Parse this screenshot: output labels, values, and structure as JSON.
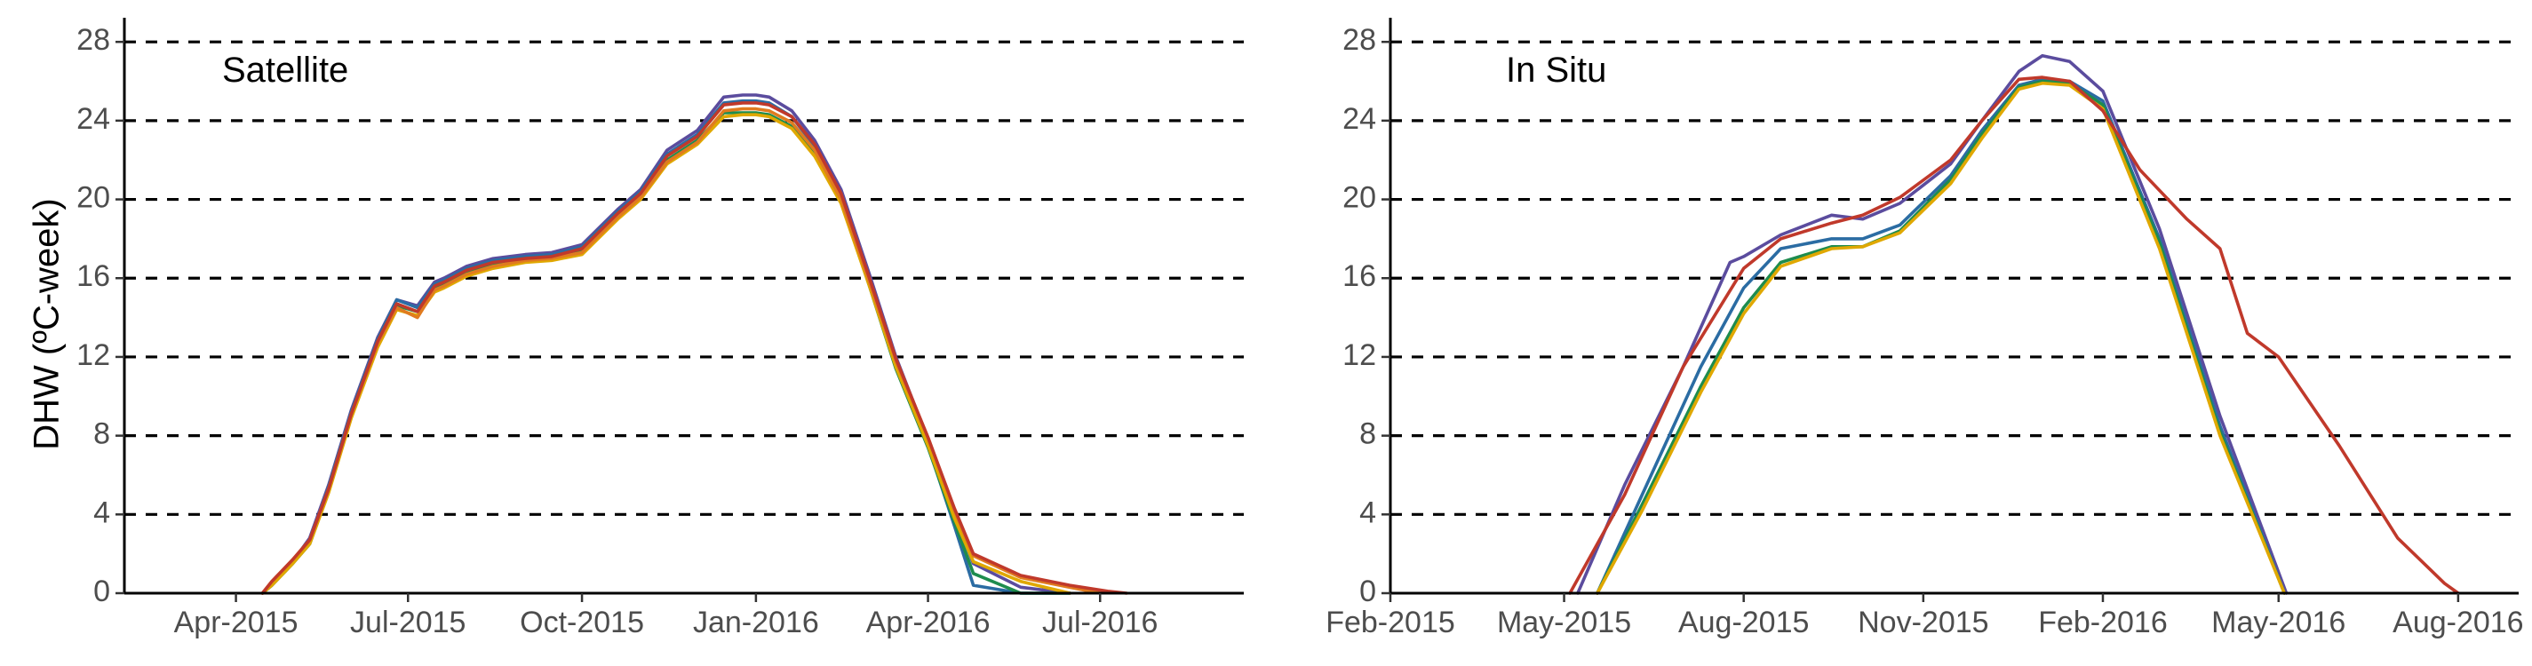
{
  "y_axis_title": "DHW (ºC-week)",
  "chart_data": [
    {
      "type": "line",
      "title": "Satellite",
      "ylabel": "DHW (ºC-week)",
      "xlabel": "",
      "x_type": "date",
      "xlim": [
        "2015-02-01",
        "2016-09-15"
      ],
      "ylim": [
        0,
        29
      ],
      "grid": "dashed horizontal",
      "y_ticks": [
        0,
        4,
        8,
        12,
        16,
        20,
        24,
        28
      ],
      "x_ticks": [
        {
          "date": "2015-04-01",
          "label": "Apr-2015"
        },
        {
          "date": "2015-07-01",
          "label": "Jul-2015"
        },
        {
          "date": "2015-10-01",
          "label": "Oct-2015"
        },
        {
          "date": "2016-01-01",
          "label": "Jan-2016"
        },
        {
          "date": "2016-04-01",
          "label": "Apr-2016"
        },
        {
          "date": "2016-07-01",
          "label": "Jul-2016"
        }
      ],
      "series": [
        {
          "color": "#5B4C9E",
          "x": [
            "2015-04-15",
            "2015-04-20",
            "2015-05-01",
            "2015-05-10",
            "2015-05-20",
            "2015-06-01",
            "2015-06-15",
            "2015-06-25",
            "2015-07-06",
            "2015-07-15",
            "2015-07-20",
            "2015-08-01",
            "2015-08-15",
            "2015-09-01",
            "2015-09-15",
            "2015-10-01",
            "2015-10-20",
            "2015-11-01",
            "2015-11-15",
            "2015-12-01",
            "2015-12-15",
            "2015-12-25",
            "2016-01-01",
            "2016-01-08",
            "2016-01-20",
            "2016-02-01",
            "2016-02-15",
            "2016-03-01",
            "2016-03-15",
            "2016-04-01",
            "2016-04-15",
            "2016-04-25",
            "2016-05-20",
            "2016-06-15"
          ],
          "y": [
            0,
            0.5,
            1.6,
            2.8,
            5.5,
            9.3,
            13.0,
            14.9,
            14.6,
            15.8,
            16.0,
            16.6,
            17.0,
            17.2,
            17.3,
            17.7,
            19.5,
            20.5,
            22.5,
            23.5,
            25.2,
            25.3,
            25.3,
            25.2,
            24.5,
            23.0,
            20.5,
            16.2,
            12.0,
            7.8,
            4.0,
            1.5,
            0.3,
            0
          ]
        },
        {
          "color": "#2B6CA3",
          "x": [
            "2015-04-15",
            "2015-04-20",
            "2015-05-01",
            "2015-05-10",
            "2015-05-20",
            "2015-06-01",
            "2015-06-15",
            "2015-06-25",
            "2015-07-06",
            "2015-07-15",
            "2015-07-20",
            "2015-08-01",
            "2015-08-15",
            "2015-09-01",
            "2015-09-15",
            "2015-10-01",
            "2015-10-20",
            "2015-11-01",
            "2015-11-15",
            "2015-12-01",
            "2015-12-15",
            "2015-12-25",
            "2016-01-01",
            "2016-01-08",
            "2016-01-20",
            "2016-02-01",
            "2016-02-15",
            "2016-03-01",
            "2016-03-15",
            "2016-04-01",
            "2016-04-15",
            "2016-04-25",
            "2016-05-20",
            "2016-06-15"
          ],
          "y": [
            0,
            0.4,
            1.6,
            2.6,
            5.4,
            9.2,
            12.9,
            14.9,
            14.5,
            15.7,
            15.9,
            16.5,
            16.9,
            17.1,
            17.2,
            17.6,
            19.4,
            20.4,
            22.3,
            23.3,
            24.9,
            25.0,
            25.0,
            24.9,
            24.2,
            22.7,
            20.2,
            15.9,
            11.6,
            7.5,
            3.4,
            0.4,
            0,
            0
          ]
        },
        {
          "color": "#1E8C4E",
          "x": [
            "2015-04-15",
            "2015-04-20",
            "2015-05-01",
            "2015-05-10",
            "2015-05-20",
            "2015-06-01",
            "2015-06-15",
            "2015-06-25",
            "2015-07-06",
            "2015-07-15",
            "2015-07-20",
            "2015-08-01",
            "2015-08-15",
            "2015-09-01",
            "2015-09-15",
            "2015-10-01",
            "2015-10-20",
            "2015-11-01",
            "2015-11-15",
            "2015-12-01",
            "2015-12-15",
            "2015-12-25",
            "2016-01-01",
            "2016-01-08",
            "2016-01-20",
            "2016-02-01",
            "2016-02-15",
            "2016-03-01",
            "2016-03-15",
            "2016-04-01",
            "2016-04-15",
            "2016-04-25",
            "2016-05-20",
            "2016-06-15"
          ],
          "y": [
            0,
            0.4,
            1.5,
            2.5,
            5.2,
            9.0,
            12.6,
            14.6,
            14.3,
            15.5,
            15.7,
            16.3,
            16.7,
            16.9,
            17.0,
            17.4,
            19.2,
            20.2,
            22.0,
            23.0,
            24.4,
            24.4,
            24.4,
            24.3,
            23.7,
            22.3,
            19.9,
            15.6,
            11.4,
            7.4,
            3.6,
            1.0,
            0,
            0
          ]
        },
        {
          "color": "#E0A800",
          "x": [
            "2015-04-15",
            "2015-04-20",
            "2015-05-01",
            "2015-05-10",
            "2015-05-20",
            "2015-06-01",
            "2015-06-15",
            "2015-06-25",
            "2015-07-06",
            "2015-07-15",
            "2015-07-20",
            "2015-08-01",
            "2015-08-15",
            "2015-09-01",
            "2015-09-15",
            "2015-10-01",
            "2015-10-20",
            "2015-11-01",
            "2015-11-15",
            "2015-12-01",
            "2015-12-15",
            "2015-12-25",
            "2016-01-01",
            "2016-01-08",
            "2016-01-20",
            "2016-02-01",
            "2016-02-15",
            "2016-03-01",
            "2016-03-15",
            "2016-04-01",
            "2016-04-15",
            "2016-04-25",
            "2016-05-20",
            "2016-06-15"
          ],
          "y": [
            0,
            0.4,
            1.5,
            2.5,
            5.1,
            8.9,
            12.5,
            14.4,
            14.1,
            15.3,
            15.5,
            16.1,
            16.5,
            16.8,
            16.9,
            17.2,
            19.0,
            20.0,
            21.8,
            22.8,
            24.2,
            24.3,
            24.3,
            24.2,
            23.6,
            22.2,
            19.8,
            15.6,
            11.5,
            7.5,
            3.8,
            1.6,
            0.6,
            0
          ]
        },
        {
          "color": "#E07B1F",
          "x": [
            "2015-04-15",
            "2015-04-20",
            "2015-05-01",
            "2015-05-10",
            "2015-05-20",
            "2015-06-01",
            "2015-06-15",
            "2015-06-25",
            "2015-07-06",
            "2015-07-15",
            "2015-07-20",
            "2015-08-01",
            "2015-08-15",
            "2015-09-01",
            "2015-09-15",
            "2015-10-01",
            "2015-10-20",
            "2015-11-01",
            "2015-11-15",
            "2015-12-01",
            "2015-12-15",
            "2015-12-25",
            "2016-01-01",
            "2016-01-08",
            "2016-01-20",
            "2016-02-01",
            "2016-02-15",
            "2016-03-01",
            "2016-03-15",
            "2016-04-01",
            "2016-04-15",
            "2016-04-25",
            "2016-05-20",
            "2016-06-15",
            "2016-07-01"
          ],
          "y": [
            0,
            0.6,
            1.7,
            2.7,
            5.3,
            9.1,
            12.7,
            14.5,
            14.0,
            15.4,
            15.6,
            16.2,
            16.6,
            16.9,
            17.0,
            17.3,
            19.1,
            20.1,
            21.9,
            22.9,
            24.5,
            24.6,
            24.6,
            24.5,
            23.9,
            22.5,
            20.0,
            15.8,
            11.8,
            7.9,
            4.2,
            1.9,
            0.8,
            0.3,
            0
          ]
        },
        {
          "color": "#C0392B",
          "x": [
            "2015-04-15",
            "2015-04-20",
            "2015-05-01",
            "2015-05-10",
            "2015-05-20",
            "2015-06-01",
            "2015-06-15",
            "2015-06-25",
            "2015-07-06",
            "2015-07-15",
            "2015-07-20",
            "2015-08-01",
            "2015-08-15",
            "2015-09-01",
            "2015-09-15",
            "2015-10-01",
            "2015-10-20",
            "2015-11-01",
            "2015-11-15",
            "2015-12-01",
            "2015-12-15",
            "2015-12-25",
            "2016-01-01",
            "2016-01-08",
            "2016-01-20",
            "2016-02-01",
            "2016-02-15",
            "2016-03-01",
            "2016-03-15",
            "2016-04-01",
            "2016-04-15",
            "2016-04-25",
            "2016-05-20",
            "2016-06-15",
            "2016-07-05",
            "2016-07-15"
          ],
          "y": [
            0,
            0.6,
            1.7,
            2.7,
            5.3,
            9.1,
            12.8,
            14.7,
            14.3,
            15.6,
            15.8,
            16.4,
            16.8,
            17.0,
            17.1,
            17.5,
            19.3,
            20.3,
            22.2,
            23.2,
            24.8,
            24.9,
            24.9,
            24.8,
            24.2,
            22.8,
            20.3,
            16.0,
            11.9,
            7.9,
            4.3,
            2.0,
            0.9,
            0.4,
            0.1,
            0
          ]
        }
      ]
    },
    {
      "type": "line",
      "title": "In Situ",
      "ylabel": "DHW (ºC-week)",
      "xlabel": "",
      "x_type": "date",
      "xlim": [
        "2015-02-01",
        "2016-09-01"
      ],
      "ylim": [
        0,
        29
      ],
      "grid": "dashed horizontal",
      "y_ticks": [
        0,
        4,
        8,
        12,
        16,
        20,
        24,
        28
      ],
      "x_ticks": [
        {
          "date": "2015-02-01",
          "label": "Feb-2015"
        },
        {
          "date": "2015-05-01",
          "label": "May-2015"
        },
        {
          "date": "2015-08-01",
          "label": "Aug-2015"
        },
        {
          "date": "2015-11-01",
          "label": "Nov-2015"
        },
        {
          "date": "2016-02-01",
          "label": "Feb-2016"
        },
        {
          "date": "2016-05-01",
          "label": "May-2016"
        },
        {
          "date": "2016-08-01",
          "label": "Aug-2016"
        }
      ],
      "series": [
        {
          "color": "#5B4C9E",
          "x": [
            "2015-05-08",
            "2015-06-01",
            "2015-07-01",
            "2015-07-25",
            "2015-08-01",
            "2015-08-20",
            "2015-09-15",
            "2015-10-01",
            "2015-10-20",
            "2015-11-15",
            "2015-12-01",
            "2015-12-20",
            "2016-01-01",
            "2016-01-15",
            "2016-02-01",
            "2016-03-01",
            "2016-04-01",
            "2016-05-05"
          ],
          "y": [
            0,
            5.5,
            11.5,
            16.8,
            17.1,
            18.2,
            19.2,
            19.0,
            19.8,
            21.8,
            24.0,
            26.5,
            27.3,
            27.0,
            25.5,
            18.5,
            9.0,
            0
          ]
        },
        {
          "color": "#2B6CA3",
          "x": [
            "2015-05-18",
            "2015-06-10",
            "2015-07-10",
            "2015-08-01",
            "2015-08-20",
            "2015-09-15",
            "2015-10-01",
            "2015-10-20",
            "2015-11-15",
            "2015-12-01",
            "2015-12-20",
            "2016-01-01",
            "2016-01-15",
            "2016-02-01",
            "2016-03-01",
            "2016-04-01",
            "2016-05-04"
          ],
          "y": [
            0,
            5.0,
            11.5,
            15.5,
            17.5,
            18.0,
            18.0,
            18.7,
            21.2,
            23.5,
            25.8,
            26.1,
            26.0,
            25.0,
            18.0,
            8.5,
            0
          ]
        },
        {
          "color": "#1E8C4E",
          "x": [
            "2015-05-18",
            "2015-06-10",
            "2015-07-10",
            "2015-08-01",
            "2015-08-20",
            "2015-09-15",
            "2015-10-01",
            "2015-10-20",
            "2015-11-15",
            "2015-12-01",
            "2015-12-20",
            "2016-01-01",
            "2016-01-15",
            "2016-02-01",
            "2016-03-01",
            "2016-04-01",
            "2016-05-04"
          ],
          "y": [
            0,
            4.5,
            10.5,
            14.5,
            16.8,
            17.6,
            17.6,
            18.4,
            21.0,
            23.3,
            25.7,
            26.0,
            25.9,
            24.8,
            17.8,
            8.2,
            0
          ]
        },
        {
          "color": "#E0A800",
          "x": [
            "2015-05-18",
            "2015-06-10",
            "2015-07-10",
            "2015-08-01",
            "2015-08-20",
            "2015-09-15",
            "2015-10-01",
            "2015-10-20",
            "2015-11-15",
            "2015-12-01",
            "2015-12-20",
            "2016-01-01",
            "2016-01-15",
            "2016-02-01",
            "2016-03-01",
            "2016-04-01",
            "2016-05-04"
          ],
          "y": [
            0,
            4.2,
            10.2,
            14.2,
            16.6,
            17.5,
            17.6,
            18.3,
            20.8,
            23.1,
            25.6,
            25.9,
            25.8,
            24.6,
            17.5,
            8.0,
            0
          ]
        },
        {
          "color": "#C0392B",
          "x": [
            "2015-05-04",
            "2015-06-01",
            "2015-07-01",
            "2015-08-01",
            "2015-08-20",
            "2015-09-15",
            "2015-10-01",
            "2015-10-20",
            "2015-11-15",
            "2015-12-01",
            "2015-12-20",
            "2016-01-01",
            "2016-01-15",
            "2016-02-01",
            "2016-02-20",
            "2016-03-15",
            "2016-04-01",
            "2016-04-15",
            "2016-05-01",
            "2016-06-01",
            "2016-07-01",
            "2016-07-25",
            "2016-08-01"
          ],
          "y": [
            0,
            5.0,
            11.5,
            16.5,
            18.0,
            18.8,
            19.2,
            20.1,
            22.0,
            24.0,
            26.1,
            26.2,
            26.0,
            24.5,
            21.5,
            19.0,
            17.5,
            13.2,
            12.0,
            7.5,
            2.8,
            0.5,
            0
          ]
        }
      ]
    }
  ]
}
